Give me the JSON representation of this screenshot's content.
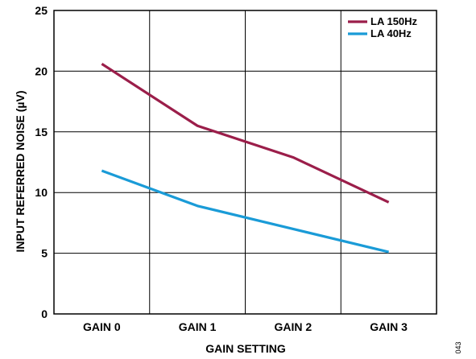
{
  "figure_id": "043",
  "chart_data": {
    "type": "line",
    "title": "",
    "xlabel": "GAIN SETTING",
    "ylabel": "INPUT REFERRED NOISE (µV)",
    "categories": [
      "GAIN 0",
      "GAIN 1",
      "GAIN 2",
      "GAIN 3"
    ],
    "ylim": [
      0,
      25
    ],
    "yticks": [
      0,
      5,
      10,
      15,
      20,
      25
    ],
    "grid": true,
    "legend_position": "top-right",
    "series": [
      {
        "name": "LA 150Hz",
        "color": "#9b1e4a",
        "values": [
          20.6,
          15.5,
          12.9,
          9.2
        ]
      },
      {
        "name": "LA 40Hz",
        "color": "#1a9bd7",
        "values": [
          11.8,
          8.9,
          7.0,
          5.1
        ]
      }
    ]
  }
}
